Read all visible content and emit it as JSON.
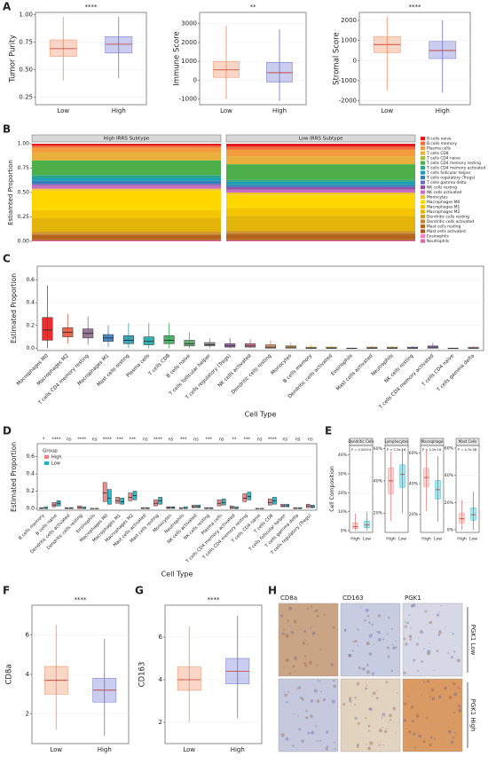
{
  "chart_data": [
    {
      "type": "box",
      "panel": "A",
      "ylabel": "Tumor Purity",
      "annotation": "****",
      "categories": [
        "Low",
        "High"
      ],
      "ylim": [
        0.18,
        1.02
      ],
      "yticks": [
        0.25,
        {
          "value": 0.5,
          "label": "0.50"
        },
        0.75,
        {
          "value": 1,
          "label": "1.00"
        }
      ],
      "series": [
        {
          "colors": [
            "#f08a5d",
            "#6a6fcf"
          ],
          "lower": [
            0.4,
            0.42
          ],
          "q1": [
            0.62,
            0.65
          ],
          "median": [
            0.69,
            0.73
          ],
          "q3": [
            0.77,
            0.8
          ],
          "upper": [
            0.98,
            0.98
          ]
        }
      ]
    },
    {
      "type": "box",
      "ylabel": "Immune Score",
      "annotation": "**",
      "categories": [
        "Low",
        "High"
      ],
      "ylim": [
        -1300,
        3600
      ],
      "yticks": [
        -1000,
        0,
        1000,
        2000,
        3000
      ],
      "series": [
        {
          "colors": [
            "#f08a5d",
            "#6a6fcf"
          ],
          "lower": [
            -1000,
            -1100
          ],
          "q1": [
            150,
            -100
          ],
          "median": [
            550,
            400
          ],
          "q3": [
            1000,
            950
          ],
          "upper": [
            2900,
            2700
          ]
        }
      ]
    },
    {
      "type": "box",
      "ylabel": "Stromal Score",
      "annotation": "****",
      "categories": [
        "Low",
        "High"
      ],
      "ylim": [
        -2200,
        2400
      ],
      "yticks": [
        -2000,
        -1000,
        0,
        1000,
        2000
      ],
      "series": [
        {
          "colors": [
            "#f08a5d",
            "#6a6fcf"
          ],
          "lower": [
            -1500,
            -1600
          ],
          "q1": [
            400,
            100
          ],
          "median": [
            800,
            500
          ],
          "q3": [
            1200,
            950
          ],
          "upper": [
            2200,
            2000
          ]
        }
      ]
    },
    {
      "type": "stacked",
      "panel": "B",
      "ylabel": "Estiamted Proportion",
      "facets": [
        "High IRRS Subtype",
        "Low IRRS Subtype"
      ],
      "ylim": [
        0,
        1
      ],
      "yticks": [
        {
          "value": 0,
          "label": "0.00"
        },
        {
          "value": 0.25,
          "label": "0.25"
        },
        {
          "value": 0.5,
          "label": "0.50"
        },
        {
          "value": 0.75,
          "label": "0.75"
        },
        {
          "value": 1,
          "label": "1.00"
        }
      ],
      "series": [
        {
          "name": "B cells naive",
          "color": "#e41a1c",
          "values": [
            0.02,
            0.03
          ]
        },
        {
          "name": "B cells memory",
          "color": "#f2693b",
          "values": [
            0.02,
            0.03
          ]
        },
        {
          "name": "Plasma cells",
          "color": "#f39c3d",
          "values": [
            0.05,
            0.07
          ]
        },
        {
          "name": "T cells CD8",
          "color": "#e8b03a",
          "values": [
            0.08,
            0.08
          ]
        },
        {
          "name": "T cells CD4 naive",
          "color": "#9cc23b",
          "values": [
            0,
            0
          ]
        },
        {
          "name": "T cells CD4 memory resting",
          "color": "#4daf4a",
          "values": [
            0.15,
            0.16
          ]
        },
        {
          "name": "T cells CD4 memory activated",
          "color": "#2fa58a",
          "values": [
            0.03,
            0.02
          ]
        },
        {
          "name": "T cells follicular helper",
          "color": "#1f9fb4",
          "values": [
            0.03,
            0.03
          ]
        },
        {
          "name": "T cells regulatory (Tregs)",
          "color": "#377eb8",
          "values": [
            0.03,
            0.02
          ]
        },
        {
          "name": "T cells gamma delta",
          "color": "#6a6fc0",
          "values": [
            0.01,
            0.01
          ]
        },
        {
          "name": "NK cells resting",
          "color": "#984ea3",
          "values": [
            0.01,
            0.02
          ]
        },
        {
          "name": "NK cells activated",
          "color": "#c86fc4",
          "values": [
            0.03,
            0.03
          ]
        },
        {
          "name": "Monocytes",
          "color": "#f1c232",
          "values": [
            0.02,
            0.02
          ]
        },
        {
          "name": "Macrophages M0",
          "color": "#ffd700",
          "values": [
            0.2,
            0.14
          ]
        },
        {
          "name": "Macrophages M1",
          "color": "#f5c400",
          "values": [
            0.08,
            0.08
          ]
        },
        {
          "name": "Macrophages M2",
          "color": "#e3b40a",
          "values": [
            0.14,
            0.15
          ]
        },
        {
          "name": "Dendritic cells resting",
          "color": "#d39a2a",
          "values": [
            0.02,
            0.02
          ]
        },
        {
          "name": "Dendritic cells activated",
          "color": "#c0852f",
          "values": [
            0.01,
            0.01
          ]
        },
        {
          "name": "Mast cells resting",
          "color": "#b5651d",
          "values": [
            0.05,
            0.06
          ]
        },
        {
          "name": "Mast cells activated",
          "color": "#a65628",
          "values": [
            0.01,
            0.01
          ]
        },
        {
          "name": "Eosinophils",
          "color": "#f781bf",
          "values": [
            0,
            0
          ]
        },
        {
          "name": "Neutrophils",
          "color": "#e06aa5",
          "values": [
            0.01,
            0.01
          ]
        }
      ]
    },
    {
      "type": "box",
      "panel": "C",
      "ylabel": "Estimated Proportion",
      "xlabel": "Cell Type",
      "rotate_labels": true,
      "categories": [
        "Macrophages M0",
        "Macrophages M2",
        "T cells CD4 memory resting",
        "Macrophages M1",
        "Mast cells resting",
        "Plasma cells",
        "T cells CD8",
        "B cells naive",
        "T cells follicular helper",
        "T cells regulatory (Tregs)",
        "NK cells activated",
        "Dendritic cells resting",
        "Monocytes",
        "B cells memory",
        "Dendritic cells activated",
        "Eosinophils",
        "Mast cells activated",
        "Neutrophils",
        "NK cells resting",
        "T cells CD4 memory activated",
        "T cells CD4 naive",
        "T cells gamma delta"
      ],
      "ylim": [
        -0.02,
        0.72
      ],
      "yticks": [
        {
          "value": 0,
          "label": "0.0"
        },
        0.2,
        0.4,
        0.6
      ],
      "series": [
        {
          "colors": [
            "#e41a1c",
            "#e8553a",
            "#8e6a8e",
            "#3a80c0",
            "#2a9ab0",
            "#20a8a8",
            "#3aad5a",
            "#5aa36a",
            "#8a8a8a",
            "#9a5aa8",
            "#c86a8a",
            "#d88a5a",
            "#e0a040",
            "#d8b030",
            "#c8a028",
            "#b89020",
            "#c09040",
            "#d0a050",
            "#8a6ab0",
            "#a070c0",
            "#c080c0",
            "#e090c0"
          ],
          "lower": [
            0,
            0.04,
            0.03,
            0.01,
            0,
            0,
            0,
            0,
            0,
            0,
            0,
            0,
            0,
            0,
            0,
            0,
            0,
            0,
            0,
            0,
            0,
            0
          ],
          "q1": [
            0.07,
            0.1,
            0.09,
            0.06,
            0.04,
            0.03,
            0.04,
            0.02,
            0.02,
            0.01,
            0.01,
            0,
            0,
            0,
            0,
            0,
            0,
            0,
            0,
            0,
            0,
            0
          ],
          "median": [
            0.16,
            0.14,
            0.13,
            0.09,
            0.07,
            0.06,
            0.07,
            0.04,
            0.03,
            0.02,
            0.02,
            0.01,
            0.01,
            0,
            0,
            0,
            0,
            0,
            0,
            0.01,
            0,
            0
          ],
          "q3": [
            0.27,
            0.18,
            0.17,
            0.12,
            0.11,
            0.1,
            0.11,
            0.07,
            0.05,
            0.04,
            0.04,
            0.03,
            0.02,
            0.01,
            0.01,
            0,
            0.01,
            0.01,
            0.01,
            0.02,
            0,
            0.01
          ],
          "upper": [
            0.55,
            0.3,
            0.28,
            0.2,
            0.22,
            0.22,
            0.22,
            0.14,
            0.09,
            0.09,
            0.08,
            0.07,
            0.05,
            0.03,
            0.02,
            0,
            0.02,
            0.02,
            0.02,
            0.05,
            0,
            0.02
          ]
        }
      ]
    },
    {
      "type": "box",
      "panel": "D",
      "ylabel": "Estimated Proportion",
      "xlabel": "Cell Type",
      "rotate_labels": true,
      "legend_title": "Group",
      "categories": [
        "B cells memory",
        "B cells naive",
        "Dendritic cells activated",
        "Dendritic cells resting",
        "Eosinophils",
        "Macrophages M0",
        "Macrophages M1",
        "Macrophages M2",
        "Mast cells activated",
        "Mast cells resting",
        "Monocytes",
        "Neutrophils",
        "NK cells activated",
        "NK cells resting",
        "Plasma cells",
        "T cells CD4 memory activated",
        "T cells CD4 memory resting",
        "T cells CD4 naive",
        "T cells CD8",
        "T cells follicular helper",
        "T cells gamma delta",
        "T cells regulatory (Tregs)"
      ],
      "annotations": [
        "*",
        "****",
        "ns",
        "****",
        "ns",
        "****",
        "***",
        "***",
        "ns",
        "****",
        "ns",
        "***",
        "ns",
        "***",
        "ns",
        "**",
        "***",
        "ns",
        "****",
        "ns",
        "ns",
        "ns"
      ],
      "ylim": [
        -0.02,
        0.75
      ],
      "yticks": [
        {
          "value": 0,
          "label": "0.0"
        },
        0.2,
        0.4,
        0.6
      ],
      "series": [
        {
          "name": "High",
          "color": "#f08080",
          "q1": [
            0,
            0.02,
            0,
            0,
            0,
            0.08,
            0.06,
            0.09,
            0,
            0.03,
            0,
            0,
            0.01,
            0,
            0.03,
            0,
            0.08,
            0,
            0.04,
            0.02,
            0,
            0.01
          ],
          "median": [
            0,
            0.04,
            0,
            0.01,
            0,
            0.18,
            0.09,
            0.13,
            0,
            0.06,
            0.01,
            0,
            0.02,
            0,
            0.06,
            0.01,
            0.12,
            0,
            0.07,
            0.03,
            0,
            0.03
          ],
          "q3": [
            0.01,
            0.07,
            0.01,
            0.03,
            0,
            0.3,
            0.13,
            0.18,
            0.01,
            0.1,
            0.02,
            0.01,
            0.04,
            0.01,
            0.1,
            0.03,
            0.17,
            0,
            0.11,
            0.05,
            0.01,
            0.05
          ]
        },
        {
          "name": "Low",
          "color": "#1fb3c4",
          "q1": [
            0,
            0.03,
            0,
            0,
            0,
            0.05,
            0.05,
            0.1,
            0,
            0.05,
            0,
            0,
            0.01,
            0,
            0.04,
            0,
            0.1,
            0,
            0.05,
            0.02,
            0,
            0.01
          ],
          "median": [
            0,
            0.06,
            0,
            0,
            0,
            0.12,
            0.08,
            0.15,
            0,
            0.09,
            0.01,
            0,
            0.02,
            0,
            0.07,
            0,
            0.14,
            0,
            0.09,
            0.03,
            0,
            0.02
          ],
          "q3": [
            0.02,
            0.09,
            0.01,
            0.02,
            0,
            0.22,
            0.12,
            0.2,
            0.01,
            0.13,
            0.02,
            0.02,
            0.04,
            0.01,
            0.11,
            0.02,
            0.19,
            0,
            0.13,
            0.05,
            0.01,
            0.04
          ]
        }
      ]
    },
    {
      "type": "box",
      "panel": "E",
      "ylabel": "Cell Composition",
      "title": "Dendritic Cells",
      "subtitle": "P = 0.00014",
      "categories": [
        "High",
        "Low"
      ],
      "ylim": [
        -1,
        45
      ],
      "yticks": [
        {
          "value": 0,
          "label": "0%"
        },
        {
          "value": 10,
          "label": "10%"
        },
        {
          "value": 20,
          "label": "20%"
        },
        {
          "value": 30,
          "label": "30%"
        },
        {
          "value": 40,
          "label": "40%"
        }
      ],
      "series": [
        {
          "colors": [
            "#f08080",
            "#1fb3c4"
          ],
          "lower": [
            0,
            0
          ],
          "q1": [
            1,
            1.5
          ],
          "median": [
            2,
            3
          ],
          "q3": [
            4,
            5
          ],
          "upper": [
            9,
            10
          ]
        }
      ]
    },
    {
      "type": "box",
      "title": "Lymphocytes",
      "subtitle": "P < 2.2e-16",
      "categories": [
        "High",
        "Low"
      ],
      "ylim": [
        8,
        62
      ],
      "yticks": [
        {
          "value": 20,
          "label": "20%"
        },
        {
          "value": 40,
          "label": "40%"
        },
        {
          "value": 60,
          "label": "60%"
        }
      ],
      "series": [
        {
          "colors": [
            "#f08080",
            "#1fb3c4"
          ],
          "lower": [
            15,
            20
          ],
          "q1": [
            32,
            36
          ],
          "median": [
            40,
            44
          ],
          "q3": [
            48,
            50
          ],
          "upper": [
            58,
            60
          ]
        }
      ]
    },
    {
      "type": "box",
      "title": "Macrophage",
      "subtitle": "P < 2.2e-16",
      "categories": [
        "High",
        "Low"
      ],
      "ylim": [
        8,
        65
      ],
      "yticks": [
        {
          "value": 20,
          "label": "20%"
        },
        {
          "value": 40,
          "label": "40%"
        },
        {
          "value": 60,
          "label": "60%"
        }
      ],
      "series": [
        {
          "colors": [
            "#f08080",
            "#1fb3c4"
          ],
          "lower": [
            22,
            15
          ],
          "q1": [
            38,
            30
          ],
          "median": [
            44,
            36
          ],
          "q3": [
            50,
            42
          ],
          "upper": [
            62,
            58
          ]
        }
      ]
    },
    {
      "type": "box",
      "title": "Mast Cells",
      "subtitle": "P = 4.7e-08",
      "categories": [
        "High",
        "Low"
      ],
      "ylim": [
        -2,
        62
      ],
      "yticks": [
        {
          "value": 0,
          "label": "0%"
        },
        {
          "value": 20,
          "label": "20%"
        },
        {
          "value": 40,
          "label": "40%"
        },
        {
          "value": 60,
          "label": "60%"
        }
      ],
      "series": [
        {
          "colors": [
            "#f08080",
            "#1fb3c4"
          ],
          "lower": [
            0,
            0
          ],
          "q1": [
            5,
            7
          ],
          "median": [
            8,
            11
          ],
          "q3": [
            12,
            16
          ],
          "upper": [
            22,
            28
          ]
        }
      ]
    },
    {
      "type": "box",
      "panel": "F",
      "ylabel": "CD8a",
      "annotation": "****",
      "categories": [
        "Low",
        "High"
      ],
      "ylim": [
        0.5,
        7.5
      ],
      "yticks": [
        2,
        4,
        6
      ],
      "series": [
        {
          "colors": [
            "#f08a5d",
            "#6a6fcf"
          ],
          "lower": [
            1.2,
            0.9
          ],
          "q1": [
            3.0,
            2.6
          ],
          "median": [
            3.7,
            3.2
          ],
          "q3": [
            4.4,
            3.8
          ],
          "upper": [
            6.5,
            5.8
          ]
        }
      ]
    },
    {
      "type": "box",
      "panel": "G",
      "ylabel": "CD163",
      "annotation": "****",
      "categories": [
        "Low",
        "High"
      ],
      "ylim": [
        1,
        7.5
      ],
      "yticks": [
        2,
        4,
        6
      ],
      "series": [
        {
          "colors": [
            "#f08a5d",
            "#6a6fcf"
          ],
          "lower": [
            2.0,
            2.2
          ],
          "q1": [
            3.5,
            3.8
          ],
          "median": [
            4.0,
            4.4
          ],
          "q3": [
            4.6,
            5.0
          ],
          "upper": [
            6.5,
            7.0
          ]
        }
      ]
    }
  ],
  "image_panel": {
    "panel": "H",
    "columns": [
      "CD8a",
      "CD163",
      "PGK1"
    ],
    "rows": [
      "PGK1 Low",
      "PGK1 High"
    ]
  }
}
